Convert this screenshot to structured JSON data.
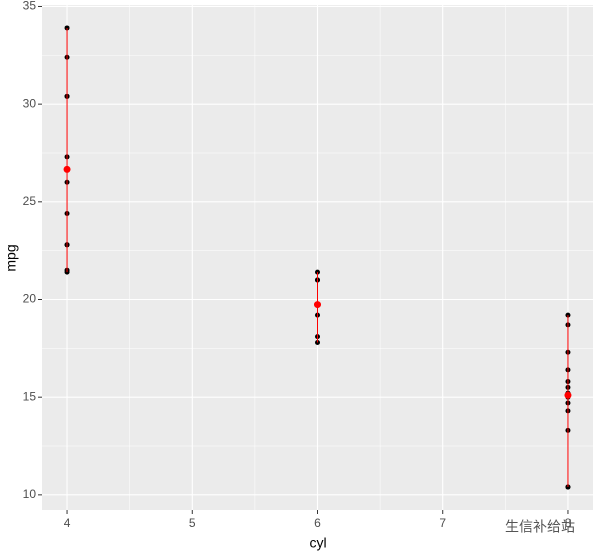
{
  "chart_data": {
    "type": "scatter",
    "x_label": "cyl",
    "y_label": "mpg",
    "watermark": "生信补给站",
    "xlim": [
      3.8,
      8.2
    ],
    "xticks": [
      4,
      5,
      6,
      7,
      8
    ],
    "ylim": [
      9.225,
      35.075
    ],
    "yticks": [
      10,
      15,
      20,
      25,
      30,
      35
    ],
    "x_minor_grid": [
      4.5,
      5.5,
      6.5,
      7.5
    ],
    "y_minor_grid": [
      12.5,
      17.5,
      22.5,
      27.5,
      32.5
    ],
    "grid": true,
    "panel_color": "#ebebeb",
    "point_color": "#000000",
    "summary_color": "#ff0000",
    "points": {
      "x": [
        6,
        6,
        4,
        6,
        8,
        6,
        8,
        4,
        4,
        6,
        6,
        8,
        8,
        8,
        8,
        8,
        8,
        4,
        4,
        4,
        4,
        8,
        8,
        8,
        8,
        4,
        4,
        4,
        8,
        6,
        8,
        4
      ],
      "y": [
        21.0,
        21.0,
        22.8,
        21.4,
        18.7,
        18.1,
        14.3,
        24.4,
        22.8,
        19.2,
        17.8,
        16.4,
        17.3,
        15.2,
        10.4,
        10.4,
        14.7,
        32.4,
        30.4,
        33.9,
        21.5,
        15.5,
        15.2,
        13.3,
        19.2,
        27.3,
        26.0,
        30.4,
        15.8,
        19.7,
        15.0,
        21.4
      ]
    },
    "summary": {
      "x": [
        4,
        6,
        8
      ],
      "mean": [
        26.66,
        19.74,
        15.1
      ],
      "ymin": [
        21.4,
        17.8,
        10.4
      ],
      "ymax": [
        33.9,
        21.4,
        19.2
      ]
    }
  }
}
